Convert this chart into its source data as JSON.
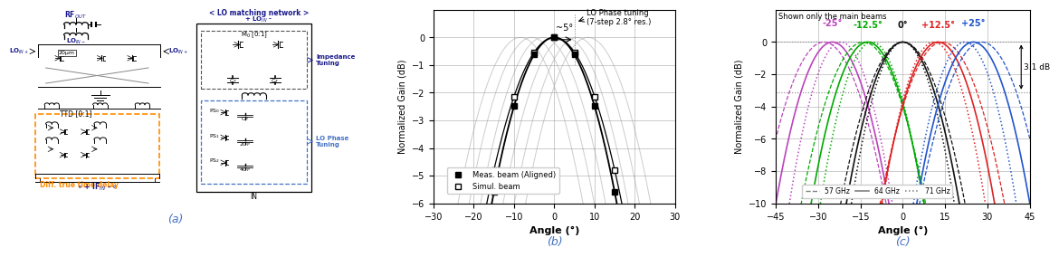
{
  "panel_b": {
    "xlim": [
      -30,
      30
    ],
    "ylim": [
      -6,
      1
    ],
    "xticks": [
      -30,
      -20,
      -10,
      0,
      10,
      20,
      30
    ],
    "yticks": [
      0,
      -1,
      -2,
      -3,
      -4,
      -5,
      -6
    ],
    "xlabel": "Angle (°)",
    "ylabel": "Normalized Gain (dB)",
    "beam_halfpower_deg": 22,
    "lo_phase_steps": [
      -8.4,
      -5.6,
      -2.8,
      0,
      2.8,
      5.6,
      8.4
    ],
    "annotation_text": "~5°",
    "annotation_label1": "LO Phase tuning",
    "annotation_label2": "(7-step 2.8° res.)",
    "legend_meas": "Meas. beam (Aligned)",
    "legend_simul": "Simul. beam"
  },
  "panel_c": {
    "xlim": [
      -45,
      45
    ],
    "ylim": [
      -10,
      2
    ],
    "xticks": [
      -45,
      -30,
      -15,
      0,
      15,
      30,
      45
    ],
    "yticks": [
      0,
      -2,
      -4,
      -6,
      -8,
      -10
    ],
    "xlabel": "Angle (°)",
    "ylabel": "Normalized Gain (dB)",
    "beam_centers": [
      -25,
      -12.5,
      0,
      12.5,
      25
    ],
    "beam_colors": [
      "#bb44bb",
      "#00aa00",
      "#111111",
      "#dd2222",
      "#2255cc"
    ],
    "beam_labels": [
      "-25°",
      "-12.5°",
      "0°",
      "+12.5°",
      "+25°"
    ],
    "beam_label_colors": [
      "#bb44bb",
      "#00aa00",
      "#111111",
      "#dd2222",
      "#2255cc"
    ],
    "beam_halfpower_deg": 22,
    "annotation_3dB": "3.1 dB",
    "annotation_note": "Shown only the main beams",
    "legend_57": "57 GHz",
    "legend_64": "64 GHz",
    "legend_71": "71 GHz"
  },
  "caption_a": "(a)",
  "caption_b": "(b)",
  "caption_c": "(c)",
  "caption_color": "#4472C4",
  "fig_bg": "#ffffff"
}
